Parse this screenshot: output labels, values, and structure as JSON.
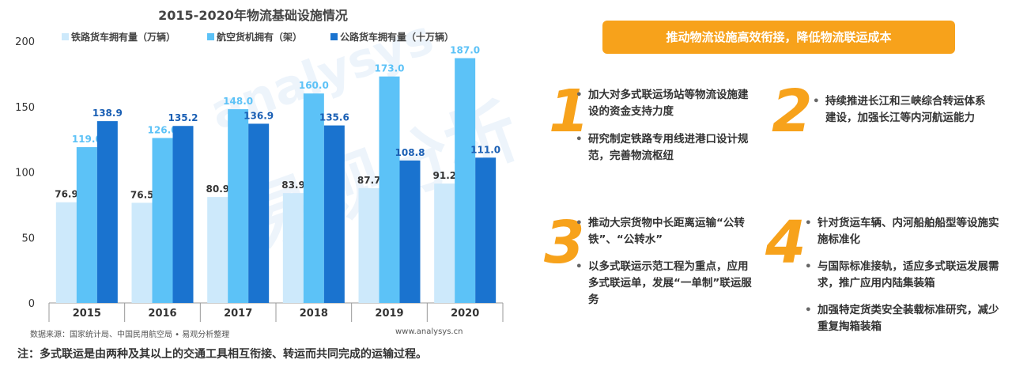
{
  "chart_data": {
    "type": "bar",
    "title": "2015-2020年物流基础设施情况",
    "categories": [
      "2015",
      "2016",
      "2017",
      "2018",
      "2019",
      "2020"
    ],
    "ylim": [
      0,
      200
    ],
    "yticks": [
      "0",
      "50",
      "100",
      "150",
      "200"
    ],
    "series": [
      {
        "name": "铁路货车拥有量（万辆）",
        "color": "#cde9fb",
        "label_color": "#333333",
        "values": [
          76.9,
          76.5,
          80.9,
          83.9,
          87.7,
          91.2
        ]
      },
      {
        "name": "航空货机拥有（架）",
        "color": "#5cc2f7",
        "label_color": "#5cc2f7",
        "values": [
          119.0,
          126.0,
          148.0,
          160.0,
          173.0,
          187.0
        ]
      },
      {
        "name": "公路货车拥有量（十万辆）",
        "color": "#1a73cf",
        "label_color": "#1a5fb4",
        "values": [
          138.9,
          135.2,
          136.9,
          135.6,
          108.8,
          111.0
        ]
      }
    ],
    "legend_position": "top",
    "grid": false
  },
  "source_left": "数据来源：国家统计局、中国民用航空局 • 易观分析整理",
  "source_right": "www.analysys.cn",
  "footnote": "注：多式联运是由两种及其以上的交通工具相互衔接、转运而共同完成的运输过程。",
  "banner": "推动物流设施高效衔接，降低物流联运成本",
  "watermark_cn": "易观分析",
  "watermark_en": "analysys",
  "points": {
    "num1": "1",
    "num2": "2",
    "num3": "3",
    "num4": "4",
    "p1a": "加大对多式联运场站等物流设施建设的资金支持力度",
    "p1b": "研究制定铁路专用线进港口设计规范，完善物流枢纽",
    "p2a": "持续推进长江和三峡综合转运体系建设，加强长江等内河航运能力",
    "p3a": "推动大宗货物中长距离运输“公转铁”、“公转水”",
    "p3b": "以多式联运示范工程为重点，应用多式联运单，发展“一单制”联运服务",
    "p4a": "针对货运车辆、内河船舶船型等设施实施标准化",
    "p4b": "与国际标准接轨，适应多式联运发展需求，推广应用内陆集装箱",
    "p4c": "加强特定货类安全装载标准研究，减少重复掏箱装箱",
    "bullet": "•"
  }
}
